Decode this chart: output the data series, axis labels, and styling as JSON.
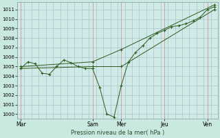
{
  "xlabel": "Pression niveau de la mer( hPa )",
  "background_color": "#c8e8e0",
  "grid_color": "#a0b8c0",
  "line_color": "#2d5a1b",
  "marker_color": "#2d5a1b",
  "ylim": [
    999.5,
    1011.8
  ],
  "yticks": [
    1000,
    1001,
    1002,
    1003,
    1004,
    1005,
    1006,
    1007,
    1008,
    1009,
    1010,
    1011
  ],
  "x_day_labels": [
    "Mar",
    "Sam",
    "Mer",
    "Jeu",
    "Ven"
  ],
  "x_day_positions": [
    0,
    10,
    14,
    20,
    26
  ],
  "vline_color": "#889999",
  "series_main": {
    "x": [
      0,
      1,
      2,
      3,
      4,
      5,
      6,
      7,
      8,
      9,
      10,
      11,
      12,
      13,
      14,
      15,
      16,
      17,
      18,
      19,
      20,
      21,
      22,
      23,
      24,
      25,
      26,
      27
    ],
    "y": [
      1004.8,
      1005.5,
      1005.3,
      1004.3,
      1004.2,
      1005.0,
      1005.7,
      1005.4,
      1005.0,
      1004.8,
      1004.8,
      1002.8,
      1000.0,
      999.7,
      1003.0,
      1005.5,
      1006.5,
      1007.2,
      1008.0,
      1008.5,
      1008.8,
      1009.2,
      1009.3,
      1009.5,
      1009.8,
      1010.2,
      1011.0,
      1011.3
    ]
  },
  "series_upper": {
    "x": [
      0,
      10,
      14,
      27
    ],
    "y": [
      1005.0,
      1005.5,
      1006.8,
      1011.5
    ]
  },
  "series_lower": {
    "x": [
      0,
      10,
      14,
      27
    ],
    "y": [
      1004.8,
      1005.0,
      1005.0,
      1011.0
    ]
  },
  "plot_bg": "#d0eae8"
}
